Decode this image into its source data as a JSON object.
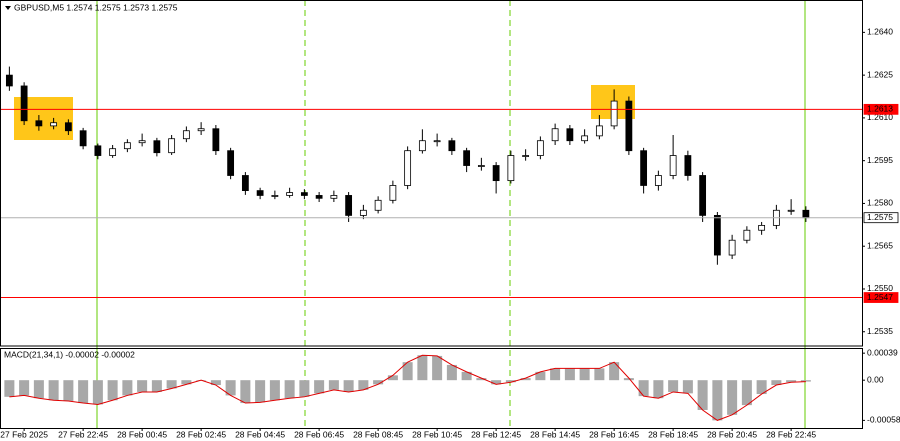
{
  "chart_data": [
    {
      "type": "candlestick",
      "title": "GBPUSD,M5  1.2574 1.2575 1.2573 1.2575",
      "categories": [
        null,
        "27 Feb 2025",
        null,
        null,
        null,
        "27 Feb 22:45",
        null,
        null,
        null,
        "28 Feb 00:45",
        null,
        null,
        null,
        "28 Feb 02:45",
        null,
        null,
        null,
        "28 Feb 04:45",
        null,
        null,
        null,
        "28 Feb 06:45",
        null,
        null,
        null,
        "28 Feb 08:45",
        null,
        null,
        null,
        "28 Feb 10:45",
        null,
        null,
        null,
        "28 Feb 12:45",
        null,
        null,
        null,
        "28 Feb 14:45",
        null,
        null,
        null,
        "28 Feb 16:45",
        null,
        null,
        null,
        "28 Feb 18:45",
        null,
        null,
        null,
        "28 Feb 20:45",
        null,
        null,
        null,
        "28 Feb 22:45",
        null
      ],
      "open": [
        1.2625,
        1.26212,
        1.2609,
        1.26072,
        1.26083,
        1.26055,
        1.26002,
        1.25968,
        1.25992,
        1.26013,
        1.2602,
        1.25978,
        1.26027,
        1.26055,
        1.26062,
        1.25985,
        1.25898,
        1.25845,
        1.25828,
        1.25828,
        1.25838,
        1.25828,
        1.25818,
        1.25828,
        1.25758,
        1.25776,
        1.25811,
        1.25863,
        1.25985,
        1.2602,
        1.2602,
        1.25985,
        1.25933,
        1.25933,
        1.2588,
        1.25968,
        1.25968,
        1.2602,
        1.26062,
        1.2602,
        1.26037,
        1.26072,
        1.26159,
        1.25985,
        1.25863,
        1.25898,
        1.25968,
        1.25898,
        1.25758,
        1.25619,
        1.25671,
        1.25706,
        1.25723,
        1.25776,
        1.25776
      ],
      "high": [
        1.2628,
        1.26225,
        1.2611,
        1.261,
        1.26095,
        1.26065,
        1.2601,
        1.26005,
        1.26025,
        1.26045,
        1.2603,
        1.2604,
        1.2607,
        1.26085,
        1.26075,
        1.25995,
        1.2591,
        1.25855,
        1.25845,
        1.25855,
        1.2585,
        1.2584,
        1.25845,
        1.2584,
        1.25795,
        1.25825,
        1.2588,
        1.26,
        1.2606,
        1.26045,
        1.2603,
        1.25995,
        1.2596,
        1.25945,
        1.25985,
        1.2599,
        1.26035,
        1.2608,
        1.26075,
        1.2606,
        1.2611,
        1.262,
        1.26175,
        1.25995,
        1.25915,
        1.2604,
        1.25985,
        1.2591,
        1.2577,
        1.2569,
        1.2572,
        1.25735,
        1.25795,
        1.25815,
        1.2579
      ],
      "low": [
        1.26195,
        1.26075,
        1.26055,
        1.2606,
        1.2604,
        1.2599,
        1.25955,
        1.2596,
        1.2598,
        1.26,
        1.25965,
        1.2597,
        1.26015,
        1.2604,
        1.2597,
        1.25885,
        1.2583,
        1.25815,
        1.25815,
        1.2582,
        1.25815,
        1.25805,
        1.25805,
        1.25735,
        1.25745,
        1.25765,
        1.258,
        1.2585,
        1.25975,
        1.26,
        1.2597,
        1.2591,
        1.25915,
        1.25835,
        1.2587,
        1.2595,
        1.25955,
        1.26005,
        1.26005,
        1.2601,
        1.26025,
        1.2606,
        1.2597,
        1.25835,
        1.25845,
        1.25885,
        1.2588,
        1.25735,
        1.25585,
        1.25605,
        1.2566,
        1.2569,
        1.2571,
        1.2576,
        1.25735
      ],
      "close": [
        1.26212,
        1.2609,
        1.26072,
        1.26083,
        1.26055,
        1.26002,
        1.25968,
        1.25992,
        1.26013,
        1.2602,
        1.25978,
        1.26027,
        1.26055,
        1.26062,
        1.25985,
        1.25898,
        1.25845,
        1.25828,
        1.25828,
        1.25838,
        1.25828,
        1.25818,
        1.25828,
        1.25758,
        1.25776,
        1.25811,
        1.25863,
        1.25985,
        1.2602,
        1.2602,
        1.25985,
        1.25933,
        1.25933,
        1.2588,
        1.25968,
        1.25968,
        1.2602,
        1.26062,
        1.2602,
        1.26037,
        1.26072,
        1.26159,
        1.25985,
        1.25863,
        1.25898,
        1.25968,
        1.25898,
        1.25758,
        1.25619,
        1.25671,
        1.25706,
        1.25723,
        1.25776,
        1.25776,
        1.2575
      ],
      "ylim": [
        1.253,
        1.2651
      ],
      "yticks": [
        1.2535,
        {
          "value": 1.255,
          "label": "1.2550"
        },
        1.2565,
        {
          "value": 1.258,
          "label": "1.2580"
        },
        1.2595,
        {
          "value": 1.261,
          "label": "1.2610"
        },
        1.2625,
        {
          "value": 1.264,
          "label": "1.2640"
        }
      ],
      "levels": [
        {
          "value": 1.2613,
          "color": "#ff0000"
        },
        {
          "value": 1.2547,
          "color": "#ff0000"
        },
        {
          "value": 1.2575,
          "color": "#b0b0b0"
        }
      ]
    },
    {
      "type": "histogram-line",
      "title": "MACD(21,34,1) -0.00002 -0.00002",
      "series": [
        {
          "color": "#a8a8a8",
          "values": [
            -0.00024,
            -0.00022,
            -0.00026,
            -0.00029,
            -0.0003,
            -0.00033,
            -0.00035,
            -0.00029,
            -0.00022,
            -0.00017,
            -0.00017,
            -0.00012,
            -6e-05,
            0,
            -7e-05,
            -0.00022,
            -0.00033,
            -0.00032,
            -0.00029,
            -0.00026,
            -0.00024,
            -0.00019,
            -0.00014,
            -0.00017,
            -0.00014,
            -6e-05,
            7e-05,
            0.00026,
            0.00036,
            0.00035,
            0.00022,
            0.00012,
            3e-05,
            -6e-05,
            -3e-05,
            3e-05,
            0.00012,
            0.00017,
            0.00017,
            0.00017,
            0.00017,
            0.00026,
            3e-05,
            -0.00023,
            -0.00026,
            -0.00017,
            -0.00019,
            -0.00043,
            -0.00058,
            -0.0005,
            -0.00036,
            -0.0002,
            -7e-05,
            -3e-05,
            -2e-05
          ]
        },
        {
          "color": "#e00000",
          "style": "line",
          "values": [
            -0.00024,
            -0.00022,
            -0.00026,
            -0.00029,
            -0.0003,
            -0.00033,
            -0.00035,
            -0.00029,
            -0.00022,
            -0.00017,
            -0.00017,
            -0.00012,
            -6e-05,
            0,
            -7e-05,
            -0.00022,
            -0.00033,
            -0.00032,
            -0.00029,
            -0.00026,
            -0.00024,
            -0.00019,
            -0.00014,
            -0.00017,
            -0.00014,
            -6e-05,
            7e-05,
            0.00026,
            0.00036,
            0.00035,
            0.00022,
            0.00012,
            3e-05,
            -6e-05,
            -3e-05,
            3e-05,
            0.00012,
            0.00017,
            0.00017,
            0.00017,
            0.00017,
            0.00026,
            3e-05,
            -0.00023,
            -0.00026,
            -0.00017,
            -0.00019,
            -0.00043,
            -0.00058,
            -0.0005,
            -0.00036,
            -0.0002,
            -7e-05,
            -3e-05,
            -2e-05
          ]
        }
      ],
      "ylim": [
        -0.00069,
        0.00045
      ],
      "yticks": [
        -0.00058,
        {
          "value": 0,
          "label": "0.00"
        },
        0.00039
      ]
    }
  ]
}
